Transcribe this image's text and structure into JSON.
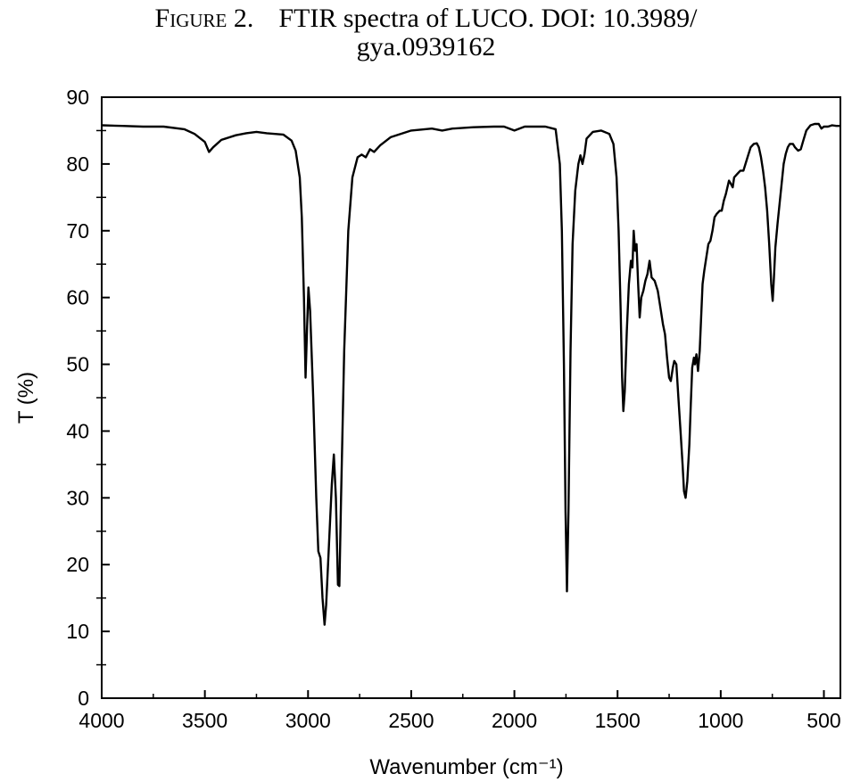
{
  "caption": {
    "figure_label": "Figure 2.",
    "line1_text": "FTIR spectra of LUCO. DOI: 10.3989/",
    "line2_text": "gya.0939162"
  },
  "chart_data": {
    "type": "line",
    "title": "",
    "xlabel": "Wavenumber (cm⁻¹)",
    "ylabel": "T (%)",
    "xlim": [
      4000,
      420
    ],
    "x_reversed": true,
    "ylim": [
      0,
      90
    ],
    "x_ticks": [
      4000,
      3500,
      3000,
      2500,
      2000,
      1500,
      1000,
      500
    ],
    "y_ticks": [
      0,
      10,
      20,
      30,
      40,
      50,
      60,
      70,
      80,
      90
    ],
    "grid": false,
    "legend": "none",
    "line_color": "#000000",
    "series": [
      {
        "points": [
          [
            4000,
            85.8
          ],
          [
            3900,
            85.7
          ],
          [
            3800,
            85.6
          ],
          [
            3700,
            85.6
          ],
          [
            3600,
            85.2
          ],
          [
            3550,
            84.5
          ],
          [
            3500,
            83.3
          ],
          [
            3480,
            81.8
          ],
          [
            3460,
            82.5
          ],
          [
            3420,
            83.6
          ],
          [
            3350,
            84.3
          ],
          [
            3300,
            84.6
          ],
          [
            3250,
            84.8
          ],
          [
            3200,
            84.6
          ],
          [
            3120,
            84.4
          ],
          [
            3080,
            83.5
          ],
          [
            3060,
            82.0
          ],
          [
            3040,
            78.0
          ],
          [
            3030,
            72.0
          ],
          [
            3020,
            60.0
          ],
          [
            3012,
            48.0
          ],
          [
            3005,
            55.0
          ],
          [
            2998,
            61.5
          ],
          [
            2990,
            58.0
          ],
          [
            2975,
            45.0
          ],
          [
            2960,
            30.0
          ],
          [
            2950,
            22.0
          ],
          [
            2940,
            21.0
          ],
          [
            2930,
            15.0
          ],
          [
            2920,
            11.0
          ],
          [
            2912,
            14.0
          ],
          [
            2900,
            22.0
          ],
          [
            2885,
            32.0
          ],
          [
            2875,
            36.5
          ],
          [
            2865,
            30.0
          ],
          [
            2855,
            17.0
          ],
          [
            2848,
            16.8
          ],
          [
            2840,
            30.0
          ],
          [
            2825,
            52.0
          ],
          [
            2805,
            70.0
          ],
          [
            2785,
            78.0
          ],
          [
            2760,
            81.0
          ],
          [
            2740,
            81.4
          ],
          [
            2720,
            81.0
          ],
          [
            2700,
            82.2
          ],
          [
            2680,
            81.8
          ],
          [
            2650,
            82.8
          ],
          [
            2600,
            84.0
          ],
          [
            2500,
            85.0
          ],
          [
            2400,
            85.3
          ],
          [
            2350,
            85.0
          ],
          [
            2300,
            85.3
          ],
          [
            2200,
            85.5
          ],
          [
            2100,
            85.6
          ],
          [
            2050,
            85.6
          ],
          [
            2000,
            85.0
          ],
          [
            1950,
            85.6
          ],
          [
            1850,
            85.6
          ],
          [
            1800,
            85.2
          ],
          [
            1780,
            80.0
          ],
          [
            1770,
            70.0
          ],
          [
            1760,
            50.0
          ],
          [
            1752,
            28.0
          ],
          [
            1745,
            16.0
          ],
          [
            1738,
            28.0
          ],
          [
            1728,
            52.0
          ],
          [
            1718,
            68.0
          ],
          [
            1705,
            76.0
          ],
          [
            1690,
            80.0
          ],
          [
            1680,
            81.3
          ],
          [
            1670,
            80.0
          ],
          [
            1660,
            81.5
          ],
          [
            1650,
            83.8
          ],
          [
            1620,
            84.8
          ],
          [
            1580,
            85.0
          ],
          [
            1540,
            84.5
          ],
          [
            1520,
            83.0
          ],
          [
            1505,
            78.0
          ],
          [
            1495,
            70.0
          ],
          [
            1485,
            58.0
          ],
          [
            1478,
            48.0
          ],
          [
            1472,
            43.0
          ],
          [
            1465,
            46.0
          ],
          [
            1455,
            55.0
          ],
          [
            1445,
            62.0
          ],
          [
            1435,
            65.5
          ],
          [
            1428,
            64.5
          ],
          [
            1422,
            70.0
          ],
          [
            1415,
            67.0
          ],
          [
            1408,
            68.0
          ],
          [
            1400,
            62.0
          ],
          [
            1393,
            57.0
          ],
          [
            1385,
            60.0
          ],
          [
            1375,
            61.0
          ],
          [
            1365,
            62.5
          ],
          [
            1355,
            63.5
          ],
          [
            1345,
            65.5
          ],
          [
            1335,
            63.0
          ],
          [
            1320,
            62.5
          ],
          [
            1305,
            61.0
          ],
          [
            1290,
            58.0
          ],
          [
            1280,
            56.0
          ],
          [
            1270,
            54.5
          ],
          [
            1260,
            51.0
          ],
          [
            1250,
            48.0
          ],
          [
            1242,
            47.5
          ],
          [
            1232,
            49.5
          ],
          [
            1225,
            50.5
          ],
          [
            1215,
            50.0
          ],
          [
            1205,
            45.0
          ],
          [
            1195,
            40.0
          ],
          [
            1185,
            35.0
          ],
          [
            1178,
            31.0
          ],
          [
            1170,
            30.0
          ],
          [
            1162,
            32.5
          ],
          [
            1152,
            38.0
          ],
          [
            1145,
            44.0
          ],
          [
            1138,
            49.5
          ],
          [
            1130,
            51.0
          ],
          [
            1125,
            50.0
          ],
          [
            1118,
            51.5
          ],
          [
            1110,
            49.0
          ],
          [
            1102,
            52.0
          ],
          [
            1095,
            57.0
          ],
          [
            1088,
            62.0
          ],
          [
            1080,
            64.0
          ],
          [
            1070,
            66.0
          ],
          [
            1060,
            68.0
          ],
          [
            1050,
            68.5
          ],
          [
            1040,
            70.0
          ],
          [
            1030,
            72.0
          ],
          [
            1020,
            72.5
          ],
          [
            1005,
            73.0
          ],
          [
            995,
            73.0
          ],
          [
            985,
            74.5
          ],
          [
            975,
            75.5
          ],
          [
            960,
            77.5
          ],
          [
            950,
            77.0
          ],
          [
            942,
            76.5
          ],
          [
            935,
            78.0
          ],
          [
            920,
            78.5
          ],
          [
            905,
            79.0
          ],
          [
            890,
            79.0
          ],
          [
            880,
            80.0
          ],
          [
            870,
            81.0
          ],
          [
            855,
            82.5
          ],
          [
            840,
            83.0
          ],
          [
            825,
            83.1
          ],
          [
            815,
            82.5
          ],
          [
            805,
            81.0
          ],
          [
            795,
            79.0
          ],
          [
            785,
            76.5
          ],
          [
            775,
            73.0
          ],
          [
            765,
            68.0
          ],
          [
            755,
            62.0
          ],
          [
            748,
            59.5
          ],
          [
            742,
            63.0
          ],
          [
            735,
            67.5
          ],
          [
            725,
            71.0
          ],
          [
            715,
            74.0
          ],
          [
            705,
            77.0
          ],
          [
            695,
            80.0
          ],
          [
            685,
            81.5
          ],
          [
            675,
            82.5
          ],
          [
            665,
            83.0
          ],
          [
            650,
            83.0
          ],
          [
            640,
            82.5
          ],
          [
            625,
            82.0
          ],
          [
            612,
            82.2
          ],
          [
            600,
            83.5
          ],
          [
            585,
            85.0
          ],
          [
            565,
            85.8
          ],
          [
            545,
            86.0
          ],
          [
            525,
            86.0
          ],
          [
            512,
            85.3
          ],
          [
            500,
            85.6
          ],
          [
            480,
            85.6
          ],
          [
            460,
            85.8
          ],
          [
            440,
            85.7
          ],
          [
            420,
            85.7
          ]
        ]
      }
    ]
  }
}
